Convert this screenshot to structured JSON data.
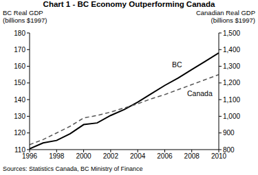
{
  "chart_data": {
    "type": "line",
    "title": "Chart 1 - BC Economy Outperforming Canada",
    "y_label": "BC Real GDP\n(billions $1997)",
    "y2_label": "Canadian Real GDP\n(billions $1997)",
    "source": "Sources: Statistics Canada, BC Ministry of Finance",
    "x": [
      1996,
      1997,
      1998,
      1999,
      2000,
      2001,
      2002,
      2003,
      2004,
      2005,
      2006,
      2007,
      2008,
      2009,
      2010
    ],
    "xlim": [
      1996,
      2010
    ],
    "xticks": [
      1996,
      1998,
      2000,
      2002,
      2004,
      2006,
      2008,
      2010
    ],
    "ylim": [
      110,
      180
    ],
    "yticks": [
      110,
      120,
      130,
      140,
      150,
      160,
      170,
      180
    ],
    "y2lim": [
      800,
      1500
    ],
    "y2ticks": [
      800,
      900,
      {
        "value": 1000,
        "label": "1,000"
      },
      {
        "value": 1100,
        "label": "1,100"
      },
      {
        "value": 1200,
        "label": "1,200"
      },
      {
        "value": 1300,
        "label": "1,300"
      },
      {
        "value": 1400,
        "label": "1,400"
      },
      {
        "value": 1500,
        "label": "1,500"
      }
    ],
    "grid": false,
    "series": [
      {
        "name": "BC",
        "color": "#000000",
        "line_style": "solid",
        "values": [
          110.5,
          114,
          115.5,
          119.5,
          125,
          126,
          130.5,
          134,
          138.5,
          143.5,
          148.5,
          153,
          158,
          163,
          168
        ]
      },
      {
        "name": "Canada",
        "color": "#555555",
        "line_style": "dashed",
        "axis": "y2",
        "values": [
          830,
          860,
          900,
          940,
          990,
          1005,
          1025,
          1050,
          1075,
          1105,
          1130,
          1160,
          1190,
          1220,
          1250
        ]
      }
    ]
  }
}
